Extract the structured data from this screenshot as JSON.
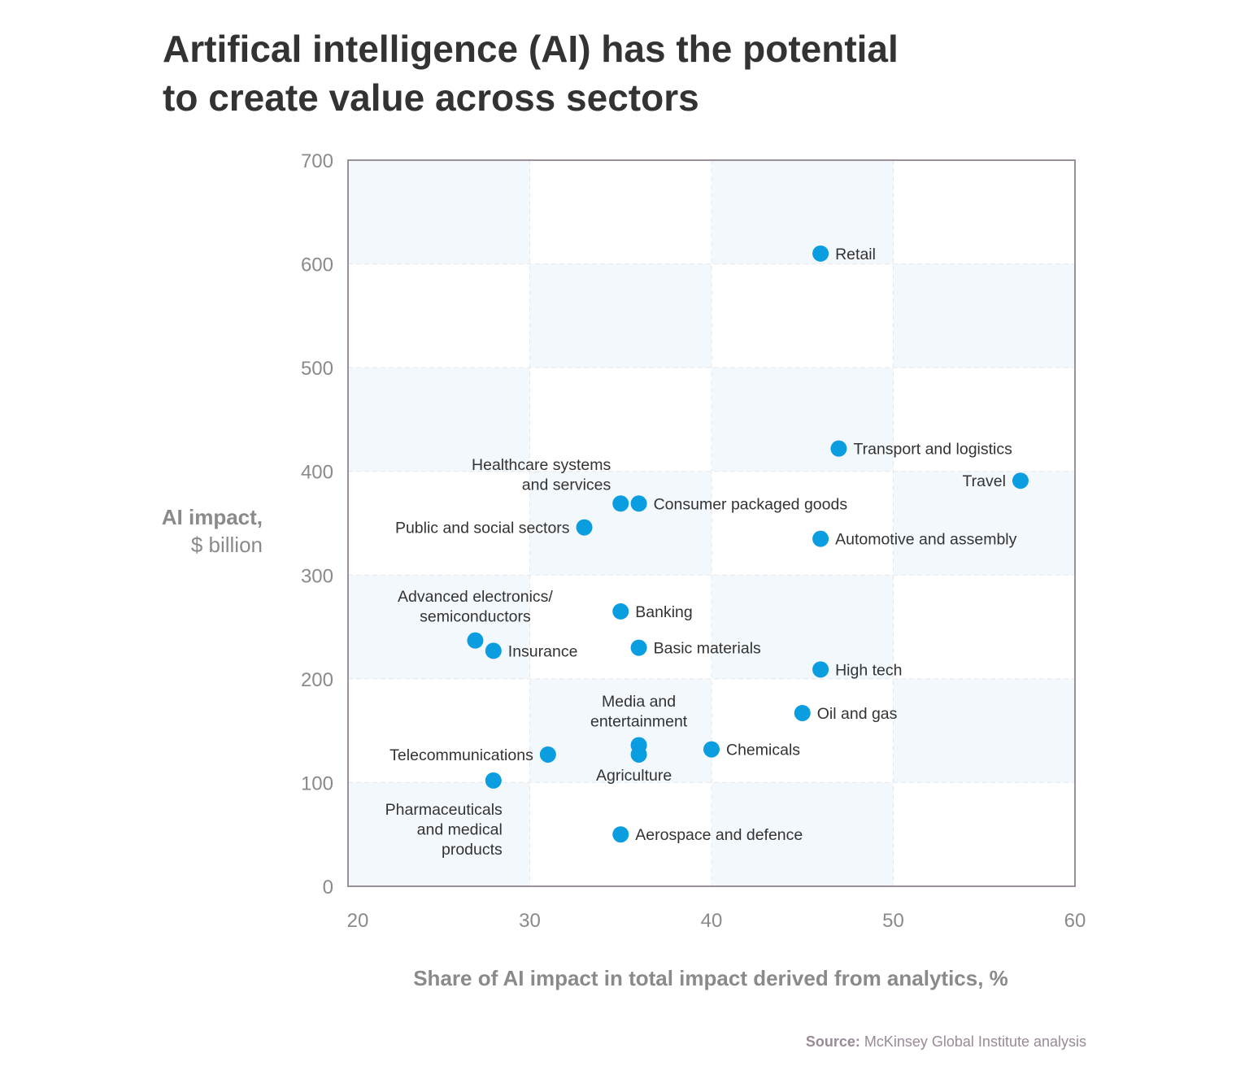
{
  "chart_data": {
    "type": "scatter",
    "title_lines": [
      "Artifical intelligence (AI) has the potential",
      "to create value across sectors"
    ],
    "xlabel": "Share of AI impact in total impact derived from analytics, %",
    "ylabel_lines": [
      "AI impact,",
      "$ billion"
    ],
    "xlim": [
      20,
      60
    ],
    "ylim": [
      0,
      700
    ],
    "xticks": [
      20,
      30,
      40,
      50,
      60
    ],
    "yticks": [
      0,
      100,
      200,
      300,
      400,
      500,
      600,
      700
    ],
    "grid": true,
    "background": "checkerboard",
    "point_color": "#0a9de0",
    "shade_color": "#f3f8fd",
    "points": [
      {
        "label": [
          "Retail"
        ],
        "x": 46,
        "y": 610,
        "label_pos": "right"
      },
      {
        "label": [
          "Transport and logistics"
        ],
        "x": 47,
        "y": 422,
        "label_pos": "right"
      },
      {
        "label": [
          "Travel"
        ],
        "x": 57,
        "y": 391,
        "label_pos": "left"
      },
      {
        "label": [
          "Consumer packaged goods"
        ],
        "x": 36,
        "y": 369,
        "label_pos": "right"
      },
      {
        "label": [
          "Healthcare systems",
          "and services"
        ],
        "x": 35,
        "y": 369,
        "label_pos": "above-left"
      },
      {
        "label": [
          "Public and social sectors"
        ],
        "x": 33,
        "y": 346,
        "label_pos": "left"
      },
      {
        "label": [
          "Automotive and assembly"
        ],
        "x": 46,
        "y": 335,
        "label_pos": "right"
      },
      {
        "label": [
          "Banking"
        ],
        "x": 35,
        "y": 265,
        "label_pos": "right"
      },
      {
        "label": [
          "Advanced electronics/",
          "semiconductors"
        ],
        "x": 27,
        "y": 237,
        "label_pos": "above"
      },
      {
        "label": [
          "Insurance"
        ],
        "x": 28,
        "y": 227,
        "label_pos": "right"
      },
      {
        "label": [
          "Basic materials"
        ],
        "x": 36,
        "y": 230,
        "label_pos": "right"
      },
      {
        "label": [
          "High tech"
        ],
        "x": 46,
        "y": 209,
        "label_pos": "right"
      },
      {
        "label": [
          "Oil and gas"
        ],
        "x": 45,
        "y": 167,
        "label_pos": "right"
      },
      {
        "label": [
          "Media and",
          "entertainment"
        ],
        "x": 36,
        "y": 136,
        "label_pos": "above"
      },
      {
        "label": [
          "Agriculture"
        ],
        "x": 36,
        "y": 127,
        "label_pos": "below"
      },
      {
        "label": [
          "Chemicals"
        ],
        "x": 40,
        "y": 132,
        "label_pos": "right"
      },
      {
        "label": [
          "Telecommunications"
        ],
        "x": 31,
        "y": 127,
        "label_pos": "left"
      },
      {
        "label": [
          "Pharmaceuticals",
          "and medical",
          "products"
        ],
        "x": 28,
        "y": 102,
        "label_pos": "below-left"
      },
      {
        "label": [
          "Aerospace and defence"
        ],
        "x": 35,
        "y": 50,
        "label_pos": "right"
      }
    ]
  },
  "source": {
    "label": "Source:",
    "text": " McKinsey Global Institute analysis"
  }
}
